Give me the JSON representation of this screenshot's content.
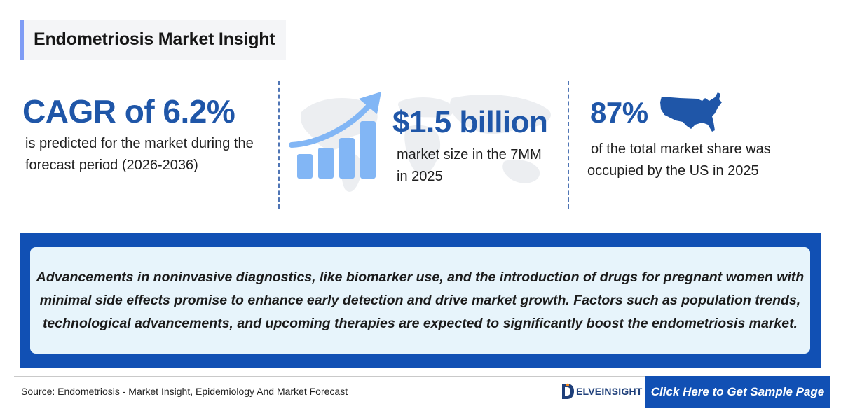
{
  "header": {
    "title": "Endometriosis Market Insight"
  },
  "stats": {
    "cagr": {
      "value": "CAGR of 6.2%",
      "line1": "is predicted for the market during the",
      "line2": "forecast period (2026-2036)"
    },
    "market_size": {
      "value": "$1.5 billion",
      "line1": "market size in the 7MM",
      "line2": "in 2025"
    },
    "us_share": {
      "value": "87%",
      "line1": "of the total market share was",
      "line2": "occupied by the US in 2025"
    }
  },
  "banner": {
    "line1": "Advancements in noninvasive diagnostics, like biomarker use, and the introduction of drugs for pregnant women with",
    "line2": "minimal side effects promise to enhance early detection and drive market growth. Factors such as population trends,",
    "line3": "technological advancements, and upcoming therapies are expected to significantly boost the endometriosis market."
  },
  "footer": {
    "source": "Source: Endometriosis - Market Insight, Epidemiology And Market Forecast",
    "logo_text": "ELVEINSIGHT",
    "cta_label": "Click Here to Get Sample Page"
  },
  "colors": {
    "accent_blue": "#1f56a8",
    "banner_blue": "#1150b4",
    "light_blue": "#82b6f5",
    "banner_bg": "#e7f4fb"
  },
  "icons": [
    "growth-chart-icon",
    "us-map-icon",
    "world-map-background",
    "delveinsight-logo-icon"
  ]
}
